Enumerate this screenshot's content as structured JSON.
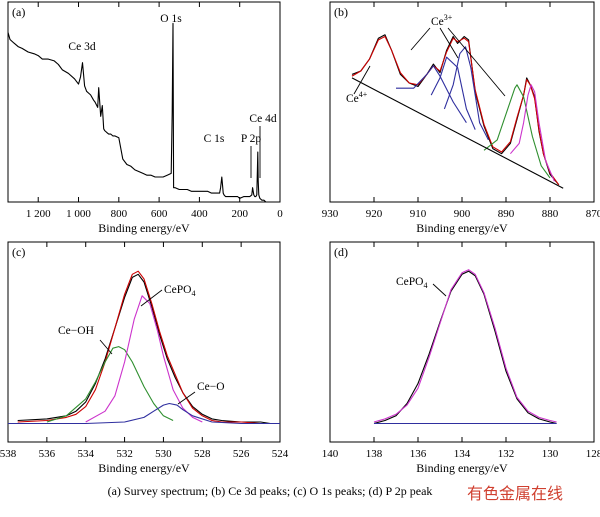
{
  "figure_caption": "(a) Survey spectrum; (b) Ce 3d peaks; (c) O 1s peaks; (d) P 2p peak",
  "watermark": "有色金属在线",
  "chart_data": [
    {
      "type": "line",
      "panel_label": "(a)",
      "xlabel": "Binding energy/eV",
      "ylabel": "",
      "xlim": [
        1350,
        0
      ],
      "x_ticks": [
        1200,
        1000,
        800,
        600,
        400,
        200,
        0
      ],
      "x_tick_labels": [
        "1 200",
        "1 000",
        "800",
        "600",
        "400",
        "200",
        "0"
      ],
      "annotations": [
        {
          "text": "Ce 3d",
          "x": 980
        },
        {
          "text": "O 1s",
          "x": 530
        },
        {
          "text": "C 1s",
          "x": 285
        },
        {
          "text": "P 2p",
          "x": 133
        },
        {
          "text": "Ce 4d",
          "x": 110
        }
      ],
      "series": [
        {
          "color": "#000000",
          "x": [
            1350,
            1340,
            1320,
            1300,
            1280,
            1250,
            1220,
            1200,
            1180,
            1150,
            1120,
            1100,
            1080,
            1050,
            1020,
            1000,
            990,
            980,
            970,
            960,
            950,
            940,
            925,
            918,
            905,
            900,
            890,
            882,
            875,
            870,
            860,
            850,
            840,
            830,
            820,
            800,
            780,
            760,
            740,
            720,
            700,
            680,
            660,
            640,
            620,
            600,
            580,
            560,
            540,
            535,
            531,
            528,
            520,
            500,
            480,
            460,
            440,
            420,
            400,
            380,
            360,
            340,
            320,
            300,
            295,
            289,
            285,
            282,
            278,
            270,
            250,
            230,
            210,
            200,
            180,
            160,
            150,
            140,
            136,
            133,
            130,
            125,
            120,
            115,
            112,
            110,
            108,
            105,
            100,
            90,
            80,
            70,
            60,
            50,
            40,
            30,
            20,
            10,
            0
          ],
          "y": [
            95,
            91,
            89,
            87,
            86,
            84,
            83,
            82,
            80,
            80,
            79,
            77,
            74,
            72,
            69,
            66,
            70,
            78,
            65,
            62,
            61,
            60,
            57,
            56,
            53,
            64,
            48,
            54,
            41,
            40,
            39,
            38,
            38,
            37,
            37,
            36,
            24,
            21,
            20,
            18,
            17,
            16,
            15,
            15,
            14,
            14,
            14,
            15,
            16,
            50,
            100,
            8,
            8,
            7,
            7,
            7,
            6,
            6,
            6,
            6,
            6,
            5,
            5,
            5,
            8,
            14,
            9,
            5,
            4,
            3,
            3,
            3,
            3,
            2,
            3,
            3,
            3,
            4,
            8,
            6,
            4,
            3,
            3,
            4,
            18,
            28,
            12,
            4,
            2,
            1,
            1,
            0,
            0,
            0,
            0,
            0,
            0,
            0,
            0
          ]
        }
      ]
    },
    {
      "type": "line",
      "panel_label": "(b)",
      "xlabel": "Binding energy/eV",
      "ylabel": "",
      "xlim": [
        930,
        870
      ],
      "x_ticks": [
        930,
        920,
        910,
        900,
        890,
        880,
        870
      ],
      "x_tick_labels": [
        "930",
        "920",
        "910",
        "900",
        "890",
        "880",
        "870"
      ],
      "annotations": [
        {
          "text": "Ce4+",
          "x": 918
        },
        {
          "text": "Ce3+",
          "x": 898
        }
      ],
      "series": [
        {
          "color": "#000000",
          "x": [
            925,
            923,
            921,
            919,
            917.5,
            916,
            914,
            912,
            910,
            908,
            906.5,
            905,
            903.5,
            902,
            901,
            899.5,
            898.5,
            897,
            895,
            893,
            891,
            889,
            887.5,
            886,
            885.3,
            884.5,
            883.5,
            882.5,
            881.5,
            880,
            878
          ],
          "y": [
            68,
            70,
            77,
            89,
            91,
            82,
            68,
            63,
            61,
            68,
            74,
            69,
            82,
            90,
            86,
            90,
            88,
            58,
            38,
            25,
            22,
            28,
            42,
            56,
            66,
            62,
            55,
            35,
            22,
            10,
            4
          ]
        },
        {
          "color": "#cc0000",
          "x": [
            925,
            923,
            921,
            919,
            917.5,
            916,
            914,
            912,
            910,
            908,
            906.5,
            905,
            903.5,
            902,
            901,
            899.5,
            898.5,
            897,
            895,
            893,
            891,
            889,
            887.5,
            886,
            885.3,
            884.5,
            883.5,
            882.5,
            881.5,
            880,
            878
          ],
          "y": [
            67,
            70,
            77,
            88,
            90,
            82,
            69,
            63,
            62,
            68,
            73,
            70,
            81,
            89,
            87,
            89,
            87,
            59,
            39,
            26,
            23,
            29,
            43,
            56,
            65,
            62,
            54,
            36,
            22,
            11,
            4
          ]
        },
        {
          "color": "#2f2f9f",
          "x": [
            915,
            911,
            908,
            906.5,
            905,
            902,
            899
          ],
          "y": [
            60,
            60,
            68,
            73,
            67,
            52,
            40
          ]
        },
        {
          "color": "#2f2f9f",
          "x": [
            907,
            905,
            903.5,
            901,
            899,
            897
          ],
          "y": [
            56,
            66,
            78,
            72,
            48,
            36
          ]
        },
        {
          "color": "#2f2f9f",
          "x": [
            904,
            902,
            900.5,
            899.2,
            898,
            896,
            894
          ],
          "y": [
            48,
            62,
            80,
            84,
            72,
            40,
            30
          ]
        },
        {
          "color": "#2f8f2f",
          "x": [
            895,
            892,
            890,
            888,
            887.5,
            886,
            884,
            882,
            880
          ],
          "y": [
            24,
            30,
            45,
            60,
            62,
            55,
            32,
            15,
            8
          ]
        },
        {
          "color": "#cc33cc",
          "x": [
            889,
            887,
            886,
            885,
            884.3,
            883.5,
            882.5,
            881,
            879
          ],
          "y": [
            22,
            28,
            40,
            56,
            62,
            58,
            40,
            18,
            6
          ]
        },
        {
          "color": "#000000",
          "x": [
            925,
            877
          ],
          "y": [
            66,
            2
          ]
        }
      ]
    },
    {
      "type": "line",
      "panel_label": "(c)",
      "xlabel": "Binding energy/eV",
      "ylabel": "",
      "xlim": [
        538,
        524
      ],
      "x_ticks": [
        538,
        536,
        534,
        532,
        530,
        528,
        526,
        524
      ],
      "x_tick_labels": [
        "538",
        "536",
        "534",
        "532",
        "530",
        "528",
        "526",
        "524"
      ],
      "annotations": [
        {
          "text": "CePO4",
          "x": 530.9
        },
        {
          "text": "Ce−OH",
          "x": 533.4
        },
        {
          "text": "Ce−O",
          "x": 529.2
        }
      ],
      "series": [
        {
          "color": "#000000",
          "x": [
            537.5,
            536,
            535,
            534.5,
            534,
            533.5,
            533,
            532.5,
            532,
            531.6,
            531.3,
            531,
            530.6,
            530.2,
            529.8,
            529.4,
            529,
            528.5,
            528,
            527.5,
            527,
            526,
            525,
            524.5
          ],
          "y": [
            2,
            3,
            5,
            8,
            14,
            26,
            42,
            62,
            82,
            95,
            97,
            92,
            76,
            58,
            42,
            30,
            20,
            11,
            6,
            3,
            2,
            1,
            1,
            0
          ]
        },
        {
          "color": "#cc0000",
          "x": [
            537.5,
            536,
            535,
            534.5,
            534,
            533.5,
            533,
            532.5,
            532,
            531.6,
            531.3,
            531,
            530.6,
            530.2,
            529.8,
            529.4,
            529,
            528.5,
            528,
            527.5,
            527,
            526,
            525,
            524.5
          ],
          "y": [
            1,
            2,
            4,
            6,
            11,
            22,
            40,
            62,
            84,
            97,
            99,
            94,
            78,
            60,
            44,
            32,
            20,
            10,
            5,
            2,
            1,
            1,
            0,
            0
          ]
        },
        {
          "color": "#2f8f2f",
          "x": [
            536,
            535,
            534,
            533.5,
            533,
            532.6,
            532.3,
            532,
            531.6,
            531,
            530.5,
            530,
            529.5
          ],
          "y": [
            1,
            5,
            16,
            27,
            40,
            49,
            50,
            48,
            40,
            24,
            13,
            5,
            2
          ]
        },
        {
          "color": "#cc33cc",
          "x": [
            534,
            533,
            532.5,
            532,
            531.5,
            531.1,
            530.7,
            530.3,
            530,
            529.5,
            529,
            528.5,
            528
          ],
          "y": [
            1,
            8,
            18,
            40,
            68,
            83,
            78,
            60,
            44,
            22,
            10,
            4,
            1
          ]
        },
        {
          "color": "#2f2f9f",
          "x": [
            538,
            534,
            532,
            531,
            530.5,
            530,
            529.7,
            529.3,
            529,
            528.5,
            527.5,
            526,
            524
          ],
          "y": [
            0,
            0,
            1,
            4,
            8,
            12,
            13,
            12,
            9,
            5,
            1,
            0,
            0
          ]
        }
      ]
    },
    {
      "type": "line",
      "panel_label": "(d)",
      "xlabel": "Binding energy/eV",
      "ylabel": "",
      "xlim": [
        140,
        128
      ],
      "x_ticks": [
        140,
        138,
        136,
        134,
        132,
        130,
        128
      ],
      "x_tick_labels": [
        "140",
        "138",
        "136",
        "134",
        "132",
        "130",
        "128"
      ],
      "annotations": [
        {
          "text": "CePO4",
          "x": 135.7
        }
      ],
      "series": [
        {
          "color": "#000000",
          "x": [
            138,
            137.5,
            137,
            136.5,
            136,
            135.5,
            135,
            134.5,
            134,
            133.7,
            133.4,
            133,
            132.5,
            132,
            131.5,
            131,
            130.5,
            130,
            129.7
          ],
          "y": [
            0,
            2,
            5,
            13,
            26,
            45,
            66,
            86,
            97,
            99,
            96,
            84,
            60,
            34,
            16,
            7,
            3,
            1,
            0
          ]
        },
        {
          "color": "#cc33cc",
          "x": [
            138,
            137.5,
            137,
            136.5,
            136,
            135.5,
            135,
            134.5,
            134,
            133.7,
            133.4,
            133,
            132.5,
            132,
            131.5,
            131,
            130.5,
            130,
            129.7
          ],
          "y": [
            1,
            3,
            6,
            12,
            23,
            43,
            65,
            87,
            98,
            100,
            97,
            85,
            62,
            36,
            17,
            8,
            4,
            2,
            1
          ]
        },
        {
          "color": "#2f2f9f",
          "x": [
            138,
            136,
            134,
            132,
            130,
            129.7
          ],
          "y": [
            0,
            0,
            0,
            0,
            0,
            0
          ]
        }
      ]
    }
  ]
}
